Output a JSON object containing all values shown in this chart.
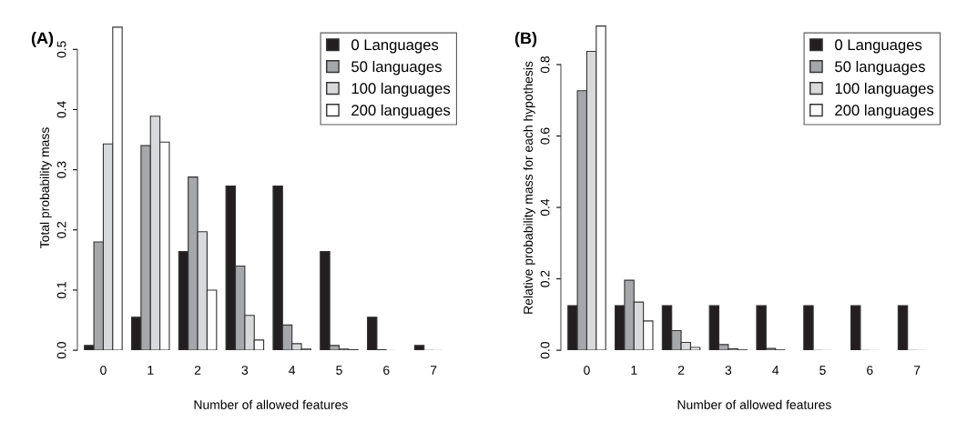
{
  "chart_data": [
    {
      "type": "bar",
      "title": "(A)",
      "xlabel": "Number of allowed features",
      "ylabel": "Total probability mass",
      "categories": [
        "0",
        "1",
        "2",
        "3",
        "4",
        "5",
        "6",
        "7"
      ],
      "ylim": [
        0,
        0.54
      ],
      "yticks": [
        {
          "value": 0,
          "label": "0.0"
        },
        0.1,
        0.2,
        0.3,
        0.4,
        0.5
      ],
      "legend": "top right",
      "grid": false,
      "series": [
        {
          "name": "0 Languages",
          "color": "#231f20",
          "values": [
            0.008,
            0.055,
            0.164,
            0.273,
            0.273,
            0.164,
            0.055,
            0.008
          ]
        },
        {
          "name": "50 languages",
          "color": "#a6a7aa",
          "values": [
            0.18,
            0.34,
            0.288,
            0.14,
            0.042,
            0.008,
            0.001,
            0.0
          ]
        },
        {
          "name": "100 languages",
          "color": "#d8d9db",
          "values": [
            0.343,
            0.389,
            0.197,
            0.058,
            0.011,
            0.002,
            0.0,
            0.0
          ]
        },
        {
          "name": "200 languages",
          "color": "#ffffff",
          "values": [
            0.537,
            0.346,
            0.1,
            0.017,
            0.002,
            0.001,
            0.0,
            0.0
          ]
        }
      ]
    },
    {
      "type": "bar",
      "title": "(B)",
      "xlabel": "Number of allowed features",
      "ylabel": "Relative probability mass for each hypothesis",
      "categories": [
        "0",
        "1",
        "2",
        "3",
        "4",
        "5",
        "6",
        "7"
      ],
      "ylim": [
        0,
        0.91
      ],
      "yticks": [
        {
          "value": 0,
          "label": "0.0"
        },
        0.2,
        0.4,
        0.6,
        0.8
      ],
      "legend": "top right",
      "grid": false,
      "series": [
        {
          "name": "0 Languages",
          "color": "#231f20",
          "values": [
            0.125,
            0.125,
            0.125,
            0.125,
            0.125,
            0.125,
            0.125,
            0.125
          ]
        },
        {
          "name": "50 languages",
          "color": "#a6a7aa",
          "values": [
            0.727,
            0.196,
            0.055,
            0.016,
            0.005,
            0.0,
            0.0,
            0.0
          ]
        },
        {
          "name": "100 languages",
          "color": "#d8d9db",
          "values": [
            0.837,
            0.135,
            0.022,
            0.004,
            0.001,
            0.0,
            0.0,
            0.0
          ]
        },
        {
          "name": "200 languages",
          "color": "#ffffff",
          "values": [
            0.908,
            0.082,
            0.008,
            0.001,
            0.0,
            0.0,
            0.0,
            0.0
          ]
        }
      ]
    }
  ]
}
